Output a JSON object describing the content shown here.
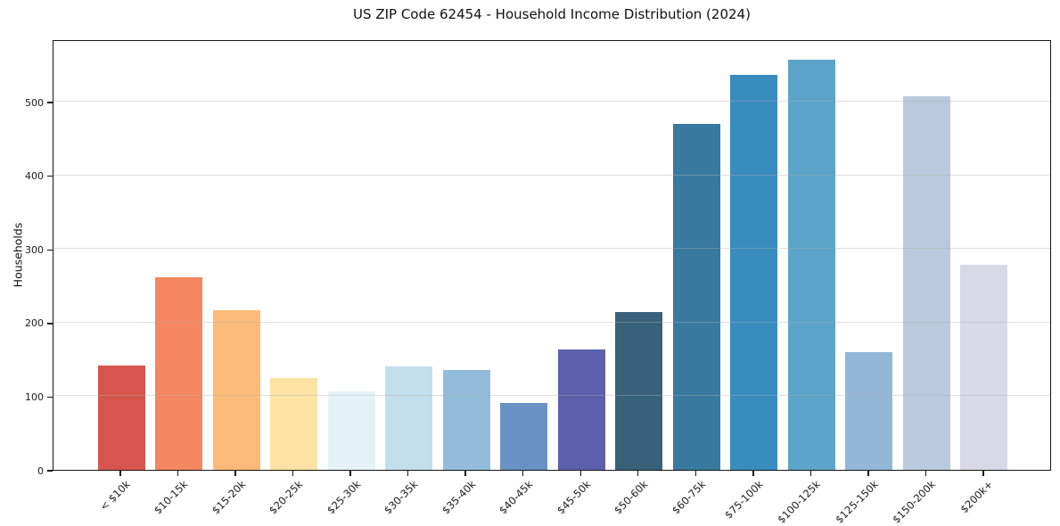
{
  "chart_data": {
    "type": "bar",
    "title": "US ZIP Code 62454 - Household Income Distribution (2024)",
    "xlabel": "",
    "ylabel": "Households",
    "categories": [
      "< $10k",
      "$10-15k",
      "$15-20k",
      "$20-25k",
      "$25-30k",
      "$30-35k",
      "$35-40k",
      "$40-45k",
      "$45-50k",
      "$50-60k",
      "$60-75k",
      "$75-100k",
      "$100-125k",
      "$125-150k",
      "$150-200k",
      "$200k+"
    ],
    "values": [
      142,
      262,
      217,
      125,
      107,
      141,
      136,
      91,
      163,
      215,
      470,
      536,
      557,
      160,
      507,
      279
    ],
    "bar_colors": [
      "#d6564e",
      "#f4875f",
      "#fbba77",
      "#fde3a3",
      "#e4f2f7",
      "#c3dfec",
      "#93bcdb",
      "#6a91c4",
      "#5c5fab",
      "#38627a",
      "#38799f",
      "#388cbe",
      "#5ca4c9",
      "#93b7d7",
      "#bac9de",
      "#d8d9e7"
    ],
    "yticks": [
      0,
      100,
      200,
      300,
      400,
      500
    ],
    "ylim": [
      0,
      585
    ],
    "grid": "horizontal-on-top",
    "legend": "none",
    "spines": "full-box-black",
    "background_color": "#ffffff",
    "text_color": "#1a1a1a"
  }
}
